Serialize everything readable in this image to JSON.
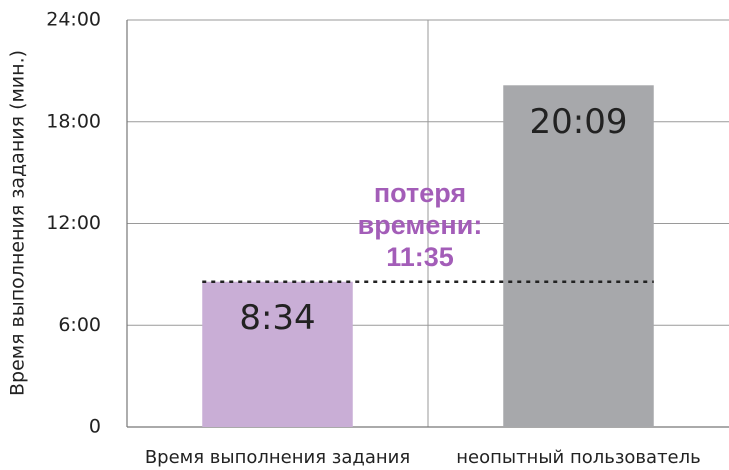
{
  "chart_data": {
    "type": "bar",
    "y_label": "Время выполнения задания (мин.)",
    "categories": [
      "Время выполнения задания",
      "неопытный пользователь"
    ],
    "values": [
      8.5667,
      20.15
    ],
    "value_labels": [
      "8:34",
      "20:09"
    ],
    "colors": [
      "#c9aed6",
      "#a7a8ab"
    ],
    "ylim": [
      0,
      24
    ],
    "yticks": [
      0,
      {
        "value": 6,
        "label": "6:00"
      },
      {
        "value": 12,
        "label": "12:00"
      },
      {
        "value": 18,
        "label": "18:00"
      },
      {
        "value": 24,
        "label": "24:00"
      }
    ],
    "grid": true,
    "annotation": [
      "потеря",
      "времени:",
      "11:35"
    ],
    "annotation_color": "#a35db8"
  }
}
